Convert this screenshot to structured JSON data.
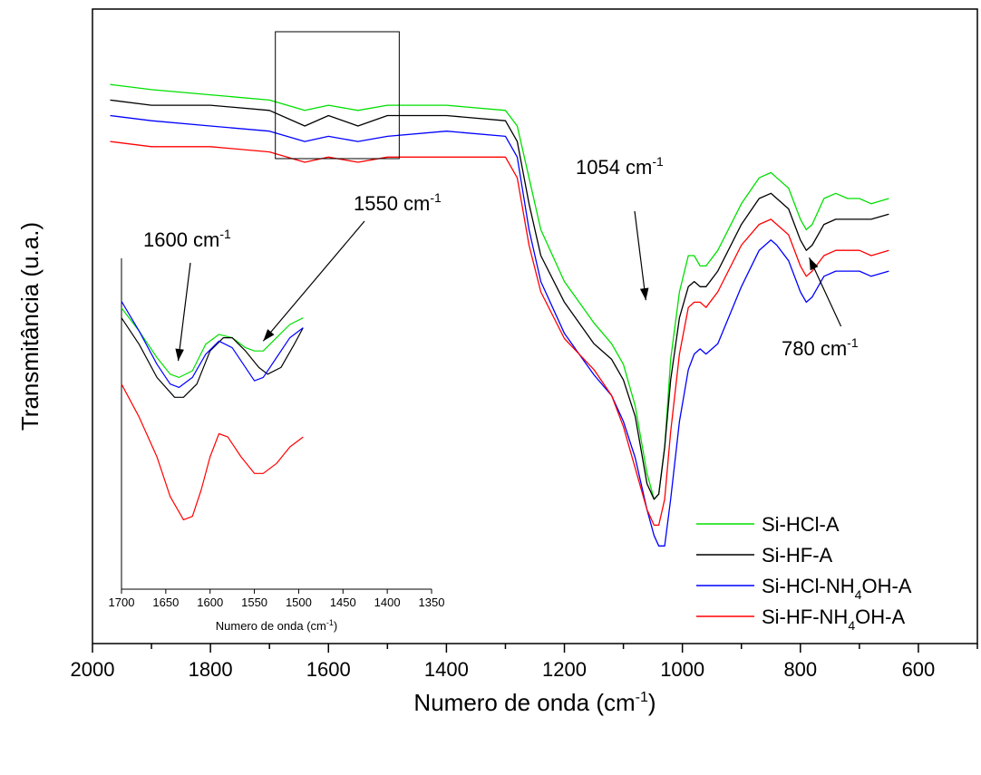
{
  "chart_data": {
    "type": "line",
    "xlabel": "Numero de onda (cm",
    "xlabel_sup": "-1",
    "xlabel_end": ")",
    "ylabel": "Transmitância (u.a.)",
    "xlim": [
      2000,
      500
    ],
    "x_reversed": true,
    "x_ticks": [
      2000,
      1800,
      1600,
      1400,
      1200,
      1000,
      800,
      600
    ],
    "x_minor_step": 100,
    "y_ticks_shown": false,
    "grid": false,
    "legend_position": "bottom-right",
    "series": [
      {
        "name": "Si-HCl-A",
        "name_parts": [
          "Si-HCl-A"
        ],
        "color": "#00e000",
        "x": [
          1970,
          1900,
          1800,
          1700,
          1640,
          1600,
          1550,
          1500,
          1400,
          1300,
          1280,
          1260,
          1240,
          1200,
          1150,
          1120,
          1100,
          1080,
          1060,
          1048,
          1040,
          1030,
          1020,
          1005,
          990,
          980,
          970,
          960,
          940,
          900,
          870,
          850,
          840,
          820,
          800,
          790,
          780,
          760,
          740,
          720,
          700,
          680,
          650
        ],
        "y": [
          90,
          89,
          88,
          87,
          85,
          86,
          85,
          86,
          86,
          85,
          82,
          72,
          62,
          52,
          44,
          40,
          36,
          28,
          15,
          10,
          11,
          20,
          37,
          50,
          57,
          57,
          55,
          55,
          58,
          67,
          72,
          73,
          72,
          70,
          64,
          62,
          63,
          68,
          69,
          68,
          68,
          67,
          68
        ]
      },
      {
        "name": "Si-HF-A",
        "name_parts": [
          "Si-HF-A"
        ],
        "color": "#000000",
        "x": [
          1970,
          1900,
          1800,
          1700,
          1640,
          1600,
          1550,
          1500,
          1400,
          1300,
          1280,
          1260,
          1240,
          1200,
          1150,
          1120,
          1100,
          1080,
          1060,
          1048,
          1040,
          1030,
          1020,
          1005,
          990,
          980,
          970,
          960,
          940,
          900,
          870,
          850,
          840,
          820,
          800,
          790,
          780,
          760,
          740,
          720,
          700,
          680,
          650
        ],
        "y": [
          87,
          86,
          86,
          85,
          82,
          84,
          82,
          84,
          84,
          83,
          79,
          67,
          57,
          48,
          40,
          37,
          33,
          26,
          13,
          10,
          11,
          20,
          33,
          45,
          51,
          52,
          51,
          51,
          54,
          63,
          68,
          69,
          68,
          66,
          60,
          58,
          59,
          63,
          64,
          64,
          64,
          64,
          65
        ]
      },
      {
        "name": "Si-HCl-NH4OH-A",
        "name_parts": [
          "Si-HCl-NH",
          "4",
          "OH-A"
        ],
        "color": "#0000ff",
        "x": [
          1970,
          1900,
          1800,
          1700,
          1640,
          1600,
          1550,
          1500,
          1400,
          1300,
          1280,
          1260,
          1240,
          1200,
          1150,
          1120,
          1100,
          1080,
          1060,
          1048,
          1040,
          1030,
          1020,
          1005,
          990,
          980,
          970,
          960,
          940,
          900,
          870,
          850,
          840,
          820,
          800,
          790,
          780,
          760,
          740,
          720,
          700,
          680,
          650
        ],
        "y": [
          84,
          83,
          82,
          81,
          79,
          80,
          79,
          80,
          81,
          80,
          76,
          62,
          52,
          42,
          34,
          30,
          25,
          18,
          8,
          3,
          1,
          1,
          10,
          25,
          35,
          38,
          39,
          38,
          40,
          51,
          58,
          60,
          59,
          56,
          50,
          48,
          49,
          53,
          54,
          54,
          54,
          53,
          54
        ]
      },
      {
        "name": "Si-HF-NH4OH-A",
        "name_parts": [
          "Si-HF-NH",
          "4",
          "OH-A"
        ],
        "color": "#ff0000",
        "x": [
          1970,
          1900,
          1800,
          1700,
          1640,
          1600,
          1550,
          1500,
          1400,
          1300,
          1280,
          1260,
          1240,
          1200,
          1150,
          1120,
          1100,
          1080,
          1060,
          1048,
          1040,
          1030,
          1020,
          1005,
          990,
          980,
          970,
          960,
          940,
          900,
          870,
          850,
          840,
          820,
          800,
          790,
          780,
          760,
          740,
          720,
          700,
          680,
          650
        ],
        "y": [
          79,
          78,
          78,
          77,
          75,
          76,
          75,
          76,
          76,
          76,
          72,
          59,
          50,
          41,
          35,
          30,
          24,
          16,
          8,
          5,
          5,
          10,
          23,
          38,
          47,
          48,
          48,
          47,
          50,
          59,
          63,
          64,
          63,
          61,
          55,
          53,
          54,
          57,
          58,
          58,
          58,
          57,
          58
        ]
      }
    ],
    "annotations": [
      {
        "label": "1054 cm",
        "sup": "-1",
        "arrow_x": 1062,
        "arrow_y": 47
      },
      {
        "label": "780 cm",
        "sup": "-1",
        "arrow_x": 785,
        "arrow_y": 58
      }
    ],
    "inset": {
      "type": "line",
      "xlabel": "Numero de onda (cm",
      "xlabel_sup": "-1",
      "xlabel_end": ")",
      "xlim": [
        1700,
        1350
      ],
      "x_reversed": true,
      "x_ticks": [
        1700,
        1650,
        1600,
        1550,
        1500,
        1450,
        1400,
        1350
      ],
      "source_box": [
        1690,
        1480
      ],
      "series": [
        {
          "name": "Si-HCl-A",
          "color": "#00e000",
          "x": [
            1700,
            1680,
            1660,
            1645,
            1635,
            1620,
            1605,
            1590,
            1575,
            1560,
            1550,
            1540,
            1525,
            1510,
            1495
          ],
          "y": [
            0.85,
            0.78,
            0.7,
            0.65,
            0.64,
            0.66,
            0.74,
            0.77,
            0.76,
            0.73,
            0.72,
            0.72,
            0.76,
            0.8,
            0.82
          ]
        },
        {
          "name": "Si-HF-A",
          "color": "#000000",
          "x": [
            1700,
            1680,
            1660,
            1640,
            1630,
            1615,
            1600,
            1585,
            1575,
            1560,
            1545,
            1535,
            1520,
            1505,
            1495
          ],
          "y": [
            0.82,
            0.74,
            0.64,
            0.58,
            0.58,
            0.62,
            0.72,
            0.76,
            0.76,
            0.72,
            0.67,
            0.65,
            0.67,
            0.74,
            0.79
          ]
        },
        {
          "name": "Si-HCl-NH4OH-A",
          "color": "#0000ff",
          "x": [
            1700,
            1680,
            1660,
            1645,
            1635,
            1620,
            1605,
            1590,
            1575,
            1560,
            1550,
            1540,
            1525,
            1510,
            1495
          ],
          "y": [
            0.87,
            0.78,
            0.68,
            0.62,
            0.61,
            0.64,
            0.71,
            0.75,
            0.73,
            0.67,
            0.63,
            0.64,
            0.7,
            0.76,
            0.79
          ]
        },
        {
          "name": "Si-HF-NH4OH-A",
          "color": "#ff0000",
          "x": [
            1700,
            1680,
            1660,
            1645,
            1630,
            1620,
            1610,
            1600,
            1590,
            1580,
            1565,
            1550,
            1540,
            1525,
            1510,
            1495
          ],
          "y": [
            0.62,
            0.52,
            0.4,
            0.28,
            0.21,
            0.22,
            0.3,
            0.4,
            0.47,
            0.46,
            0.4,
            0.35,
            0.35,
            0.38,
            0.43,
            0.46
          ]
        }
      ],
      "annotations": [
        {
          "label": "1600 cm",
          "sup": "-1",
          "arrow_x": 1636,
          "arrow_y": 0.69
        },
        {
          "label": "1550 cm",
          "sup": "-1",
          "arrow_x": 1540,
          "arrow_y": 0.75
        }
      ]
    }
  }
}
